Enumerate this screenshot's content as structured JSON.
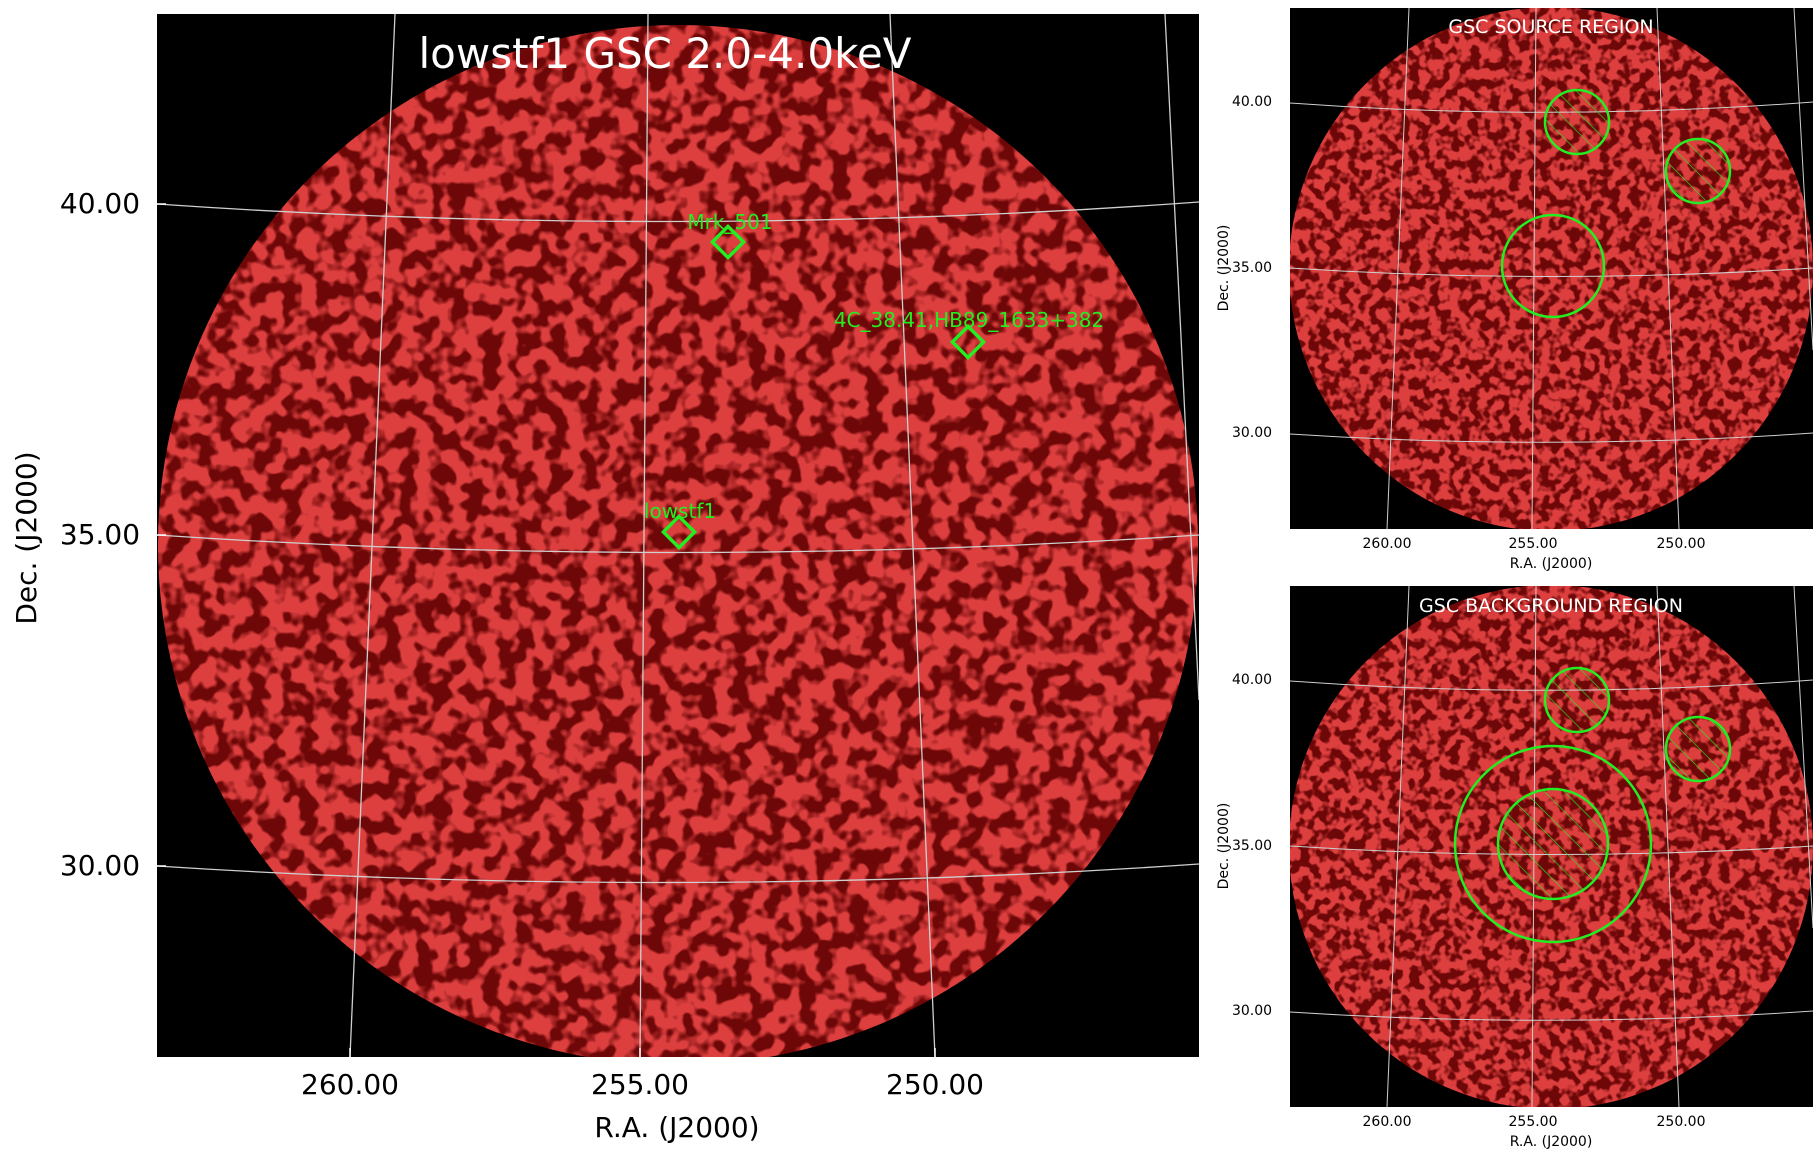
{
  "main_panel": {
    "title": "lowstf1 GSC 2.0-4.0keV",
    "xlabel": "R.A. (J2000)",
    "ylabel": "Dec. (J2000)",
    "xticks": [
      "260.00",
      "255.00",
      "250.00"
    ],
    "yticks": [
      "40.00",
      "35.00",
      "30.00"
    ],
    "sources": [
      {
        "name": "Mrk_501"
      },
      {
        "name": "4C_38.41,HB89_1633+382"
      },
      {
        "name": "lowstf1"
      }
    ]
  },
  "source_panel": {
    "title": "GSC SOURCE REGION",
    "xlabel": "R.A. (J2000)",
    "ylabel": "Dec. (J2000)",
    "xticks": [
      "260.00",
      "255.00",
      "250.00"
    ],
    "yticks": [
      "40.00",
      "35.00",
      "30.00"
    ]
  },
  "background_panel": {
    "title": "GSC BACKGROUND REGION",
    "xlabel": "R.A. (J2000)",
    "ylabel": "Dec. (J2000)",
    "xticks": [
      "260.00",
      "255.00",
      "250.00"
    ],
    "yticks": [
      "40.00",
      "35.00",
      "30.00"
    ]
  },
  "colors": {
    "background": "#000000",
    "emission": "#b01010",
    "region": "#22ee22",
    "grid": "#cfcfcf",
    "title": "#ffffff"
  }
}
